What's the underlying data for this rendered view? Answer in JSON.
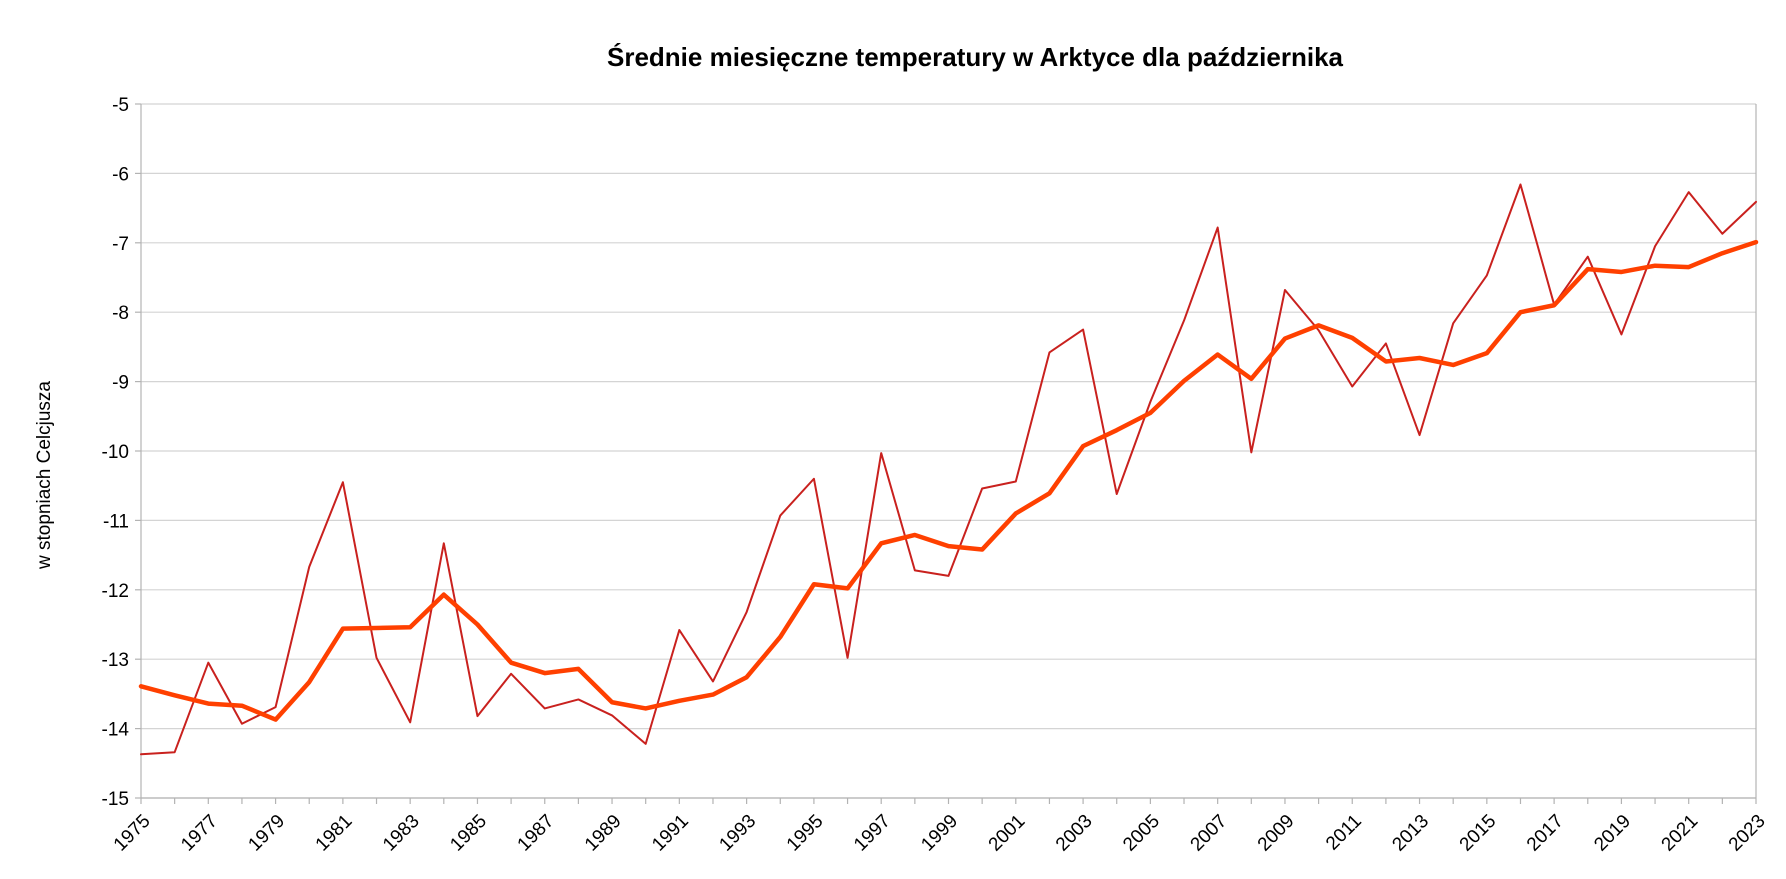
{
  "chart_data": {
    "type": "line",
    "title": "Średnie miesięczne temperatury w Arktyce dla października",
    "xlabel": "",
    "ylabel": "w stopniach Celcjusza",
    "xlim": [
      1975,
      2023
    ],
    "ylim": [
      -15,
      -5
    ],
    "yticks": [
      -15,
      -14,
      -13,
      -12,
      -11,
      -10,
      -9,
      -8,
      -7,
      -6,
      -5
    ],
    "xticks": [
      1975,
      1977,
      1979,
      1981,
      1983,
      1985,
      1987,
      1989,
      1991,
      1993,
      1995,
      1997,
      1999,
      2001,
      2003,
      2005,
      2007,
      2009,
      2011,
      2013,
      2015,
      2017,
      2019,
      2021,
      2023
    ],
    "grid": true,
    "legend": "none",
    "x": [
      1975,
      1976,
      1977,
      1978,
      1979,
      1980,
      1981,
      1982,
      1983,
      1984,
      1985,
      1986,
      1987,
      1988,
      1989,
      1990,
      1991,
      1992,
      1993,
      1994,
      1995,
      1996,
      1997,
      1998,
      1999,
      2000,
      2001,
      2002,
      2003,
      2004,
      2005,
      2006,
      2007,
      2008,
      2009,
      2010,
      2011,
      2012,
      2013,
      2014,
      2015,
      2016,
      2017,
      2018,
      2019,
      2020,
      2021,
      2022,
      2023
    ],
    "series": [
      {
        "color": "#c9211e",
        "width": 2,
        "values": [
          -14.37,
          -14.34,
          -13.05,
          -13.93,
          -13.69,
          -11.67,
          -10.45,
          -12.98,
          -13.91,
          -11.33,
          -13.82,
          -13.21,
          -13.71,
          -13.58,
          -13.81,
          -14.22,
          -12.58,
          -13.32,
          -12.32,
          -10.93,
          -10.4,
          -12.98,
          -10.03,
          -11.72,
          -11.8,
          -10.54,
          -10.44,
          -8.58,
          -8.25,
          -10.62,
          -9.29,
          -8.12,
          -6.78,
          -10.02,
          -7.68,
          -8.26,
          -9.07,
          -8.45,
          -9.77,
          -8.16,
          -7.47,
          -6.16,
          -7.89,
          -7.2,
          -8.32,
          -7.05,
          -6.27,
          -6.87,
          -6.41
        ]
      },
      {
        "color": "#ff4000",
        "width": 4.5,
        "values": [
          -13.39,
          -13.52,
          -13.64,
          -13.67,
          -13.87,
          -13.33,
          -12.56,
          -12.55,
          -12.54,
          -12.07,
          -12.5,
          -13.05,
          -13.2,
          -13.14,
          -13.62,
          -13.71,
          -13.6,
          -13.51,
          -13.26,
          -12.68,
          -11.92,
          -11.98,
          -11.33,
          -11.21,
          -11.37,
          -11.42,
          -10.9,
          -10.61,
          -9.93,
          -9.7,
          -9.45,
          -8.99,
          -8.61,
          -8.96,
          -8.38,
          -8.19,
          -8.37,
          -8.71,
          -8.66,
          -8.76,
          -8.59,
          -8.0,
          -7.9,
          -7.38,
          -7.42,
          -7.33,
          -7.35,
          -7.15,
          -6.99
        ]
      }
    ]
  }
}
